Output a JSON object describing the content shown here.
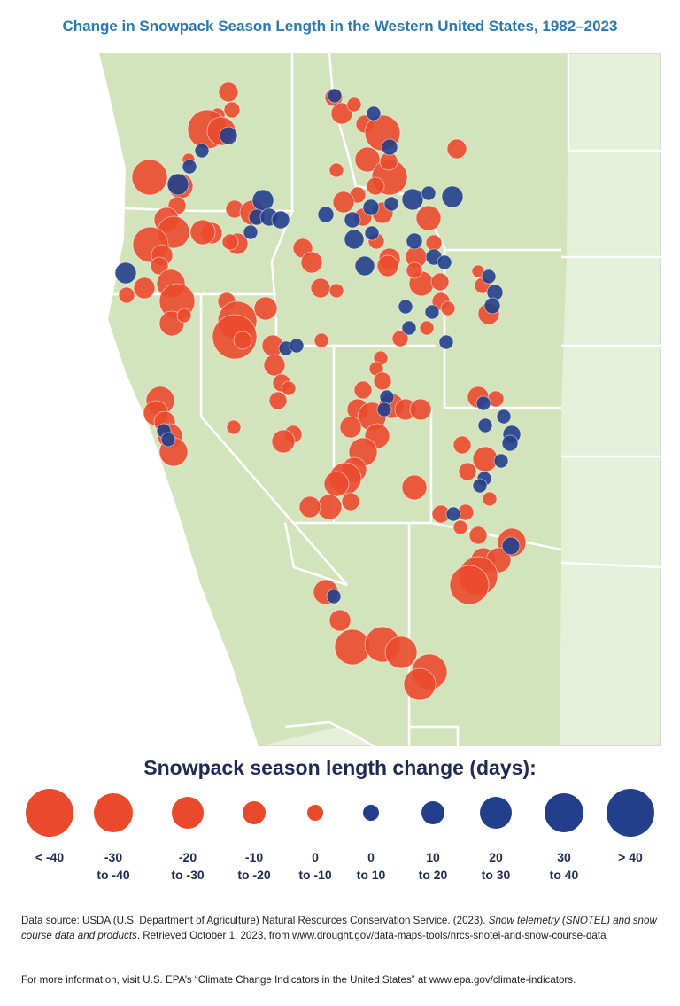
{
  "title": "Change in Snowpack Season Length in the Western United States, 1982–2023",
  "legend": {
    "title": "Snowpack season length change (days):",
    "items": [
      {
        "label": [
          "< -40"
        ],
        "color": "#ea4a2c"
      },
      {
        "label": [
          "-30",
          "to -40"
        ],
        "color": "#ea4a2c"
      },
      {
        "label": [
          "-20",
          "to -30"
        ],
        "color": "#ea4a2c"
      },
      {
        "label": [
          "-10",
          "to -20"
        ],
        "color": "#ea4a2c"
      },
      {
        "label": [
          "0",
          "to -10"
        ],
        "color": "#ea4a2c"
      },
      {
        "label": [
          "0",
          "to 10"
        ],
        "color": "#233f8c"
      },
      {
        "label": [
          "10",
          "to 20"
        ],
        "color": "#233f8c"
      },
      {
        "label": [
          "20",
          "to 30"
        ],
        "color": "#233f8c"
      },
      {
        "label": [
          "30",
          "to 40"
        ],
        "color": "#233f8c"
      },
      {
        "label": [
          "> 40"
        ],
        "color": "#233f8c"
      }
    ]
  },
  "source": {
    "lead": "Data source: USDA (U.S. Department of Agriculture) Natural Resources Conservation Service. (2023). ",
    "work": "Snow telemetry (SNOTEL) and snow course data and products",
    "tail": ". Retrieved October 1, 2023, from www.drought.gov/data-maps-tools/nrcs-snotel-and-snow-course-data"
  },
  "more_info": "For more information, visit U.S. EPA’s “Climate Change Indicators in the United States” at www.epa.gov/climate-indicators."
}
